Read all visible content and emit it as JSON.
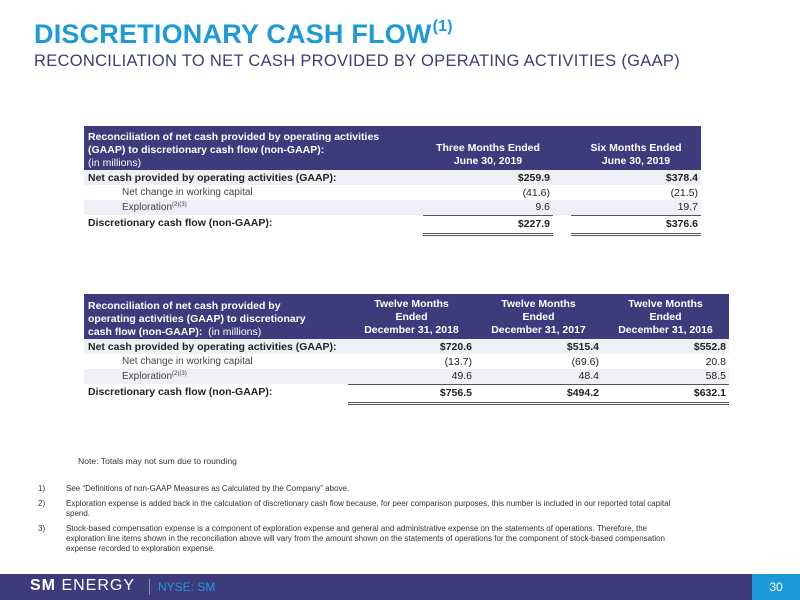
{
  "header": {
    "title": "DISCRETIONARY CASH FLOW",
    "title_sup": "(1)",
    "subtitle": "RECONCILIATION TO NET CASH PROVIDED BY OPERATING ACTIVITIES (GAAP)"
  },
  "table1": {
    "label_line1": "Reconciliation of net cash provided by operating activities",
    "label_line2": "(GAAP) to discretionary cash flow (non-GAAP):",
    "label_line3": "(in millions)",
    "col1_line1": "Three Months Ended",
    "col1_line2": "June 30, 2019",
    "col2_line1": "Six Months Ended",
    "col2_line2": "June 30, 2019",
    "rows": [
      {
        "label": "Net cash provided by operating activities (GAAP):",
        "v1": "$259.9",
        "v2": "$378.4"
      },
      {
        "label": "Net change in working capital",
        "v1": "(41.6)",
        "v2": "(21.5)"
      },
      {
        "label": "Exploration",
        "sup": "(2)(3)",
        "v1": "9.6",
        "v2": "19.7"
      },
      {
        "label": "Discretionary cash flow (non-GAAP):",
        "v1": "$227.9",
        "v2": "$376.6"
      }
    ]
  },
  "table2": {
    "label_line1": "Reconciliation of net cash provided by",
    "label_line2": "operating activities (GAAP) to discretionary",
    "label_line3_bold": "cash flow (non-GAAP):",
    "label_line3_plain": "(in millions)",
    "cols": [
      {
        "line1": "Twelve Months",
        "line2": "Ended",
        "line3": "December 31, 2018"
      },
      {
        "line1": "Twelve Months",
        "line2": "Ended",
        "line3": "December 31, 2017"
      },
      {
        "line1": "Twelve Months",
        "line2": "Ended",
        "line3": "December 31, 2016"
      }
    ],
    "rows": [
      {
        "label": "Net cash provided by operating activities (GAAP):",
        "v1": "$720.6",
        "v2": "$515.4",
        "v3": "$552.8"
      },
      {
        "label": "Net change in working capital",
        "v1": "(13.7)",
        "v2": "(69.6)",
        "v3": "20.8"
      },
      {
        "label": "Exploration",
        "sup": "(2)(3)",
        "v1": "49.6",
        "v2": "48.4",
        "v3": "58.5"
      },
      {
        "label": "Discretionary cash flow (non-GAAP):",
        "v1": "$756.5",
        "v2": "$494.2",
        "v3": "$632.1"
      }
    ]
  },
  "note": "Note: Totals may not sum due to rounding",
  "footnotes": [
    {
      "num": "1)",
      "text": "See “Definitions of non-GAAP Measures as Calculated by the Company” above."
    },
    {
      "num": "2)",
      "text": "Exploration expense is added back in the calculation of discretionary cash flow because, for peer comparison purposes, this number is included in our reported total capital spend."
    },
    {
      "num": "3)",
      "text": "Stock-based compensation expense is a component of exploration expense and general and administrative expense on the statements of operations. Therefore, the exploration line items shown in the reconciliation above will vary from the amount shown on the statements of operations for the component of stock-based compensation expense recorded to exploration expense."
    }
  ],
  "footer": {
    "logo_bold": "SM",
    "logo_light": "ENERGY",
    "ticker": "NYSE: SM",
    "page": "30"
  },
  "colors": {
    "navy": "#3d3b7c",
    "blue": "#1e9ad6",
    "shade": "#eef0f6"
  }
}
